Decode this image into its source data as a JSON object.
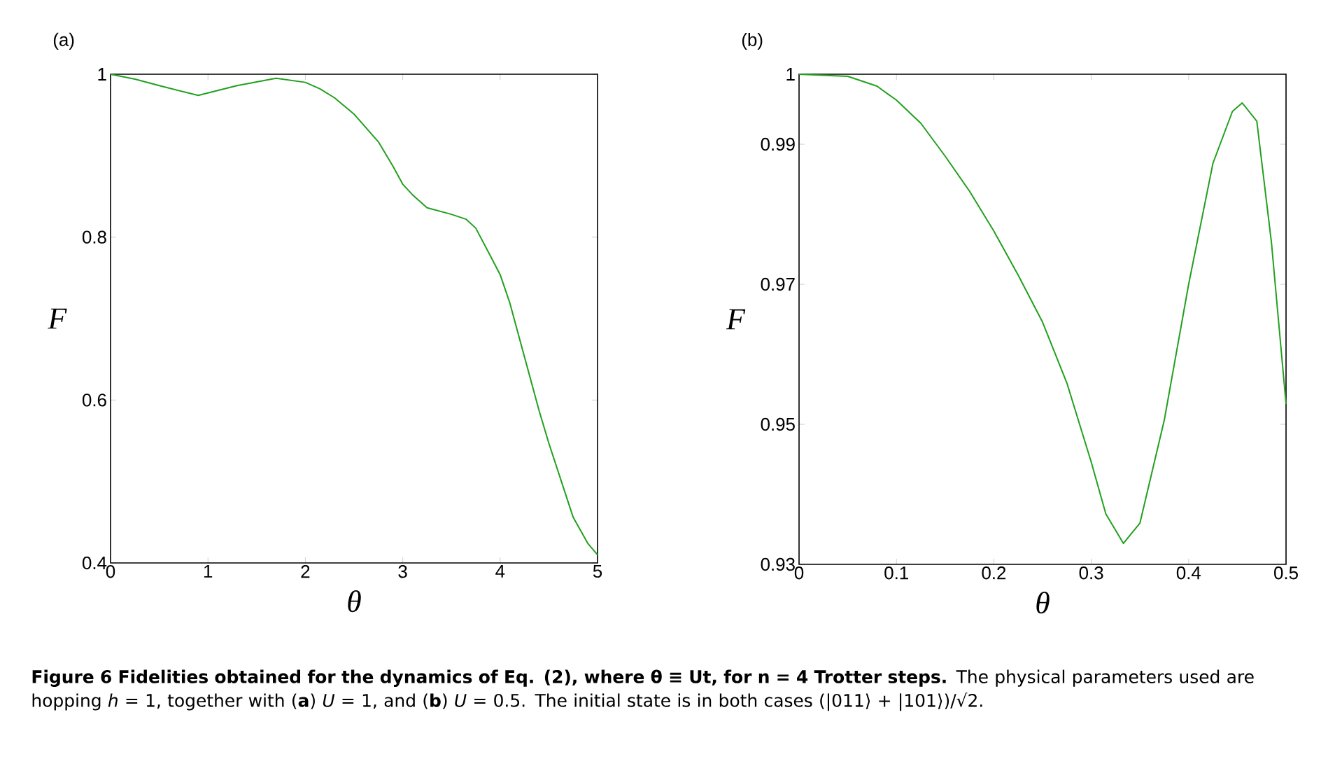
{
  "chart_data": [
    {
      "type": "line",
      "title": "(a)",
      "xlabel": "θ",
      "ylabel": "F",
      "color": "#22a01e",
      "x": [
        0,
        0.25,
        0.5,
        0.9,
        1.1,
        1.3,
        1.7,
        2.0,
        2.15,
        2.3,
        2.5,
        2.75,
        2.9,
        3.0,
        3.1,
        3.25,
        3.5,
        3.65,
        3.75,
        3.9,
        4.0,
        4.1,
        4.25,
        4.4,
        4.5,
        4.75,
        4.9,
        5.0
      ],
      "values": [
        1.0,
        0.994,
        0.986,
        0.974,
        0.98,
        0.986,
        0.995,
        0.99,
        0.982,
        0.971,
        0.951,
        0.917,
        0.887,
        0.865,
        0.852,
        0.836,
        0.828,
        0.822,
        0.811,
        0.777,
        0.754,
        0.719,
        0.653,
        0.587,
        0.547,
        0.456,
        0.424,
        0.41
      ],
      "xlim": [
        0,
        5
      ],
      "ylim": [
        0.4,
        1
      ],
      "xticks": [
        0,
        1,
        2,
        3,
        4,
        5
      ],
      "yticks": [
        0.4,
        0.6,
        0.8,
        1
      ],
      "annotations": [
        "**Figure 6  Fidelities obtained for the dynamics of Eq. (2), where θ ≡ Ut, for n = 4 Trotter steps.** The physical parameters used are hopping *h* = 1, together with (**a**) *U* = 1, and (**b**) *U* = 0.5. The initial state is in both cases (|011⟩ + |101⟩)/√2."
      ]
    },
    {
      "type": "line",
      "title": "(b)",
      "xlabel": "θ",
      "ylabel": "F",
      "color": "#22a01e",
      "x": [
        0,
        0.05,
        0.08,
        0.1,
        0.125,
        0.15,
        0.175,
        0.2,
        0.225,
        0.25,
        0.275,
        0.3,
        0.315,
        0.333,
        0.35,
        0.375,
        0.4,
        0.425,
        0.445,
        0.455,
        0.47,
        0.485,
        0.5
      ],
      "values": [
        1.0,
        0.9997,
        0.9983,
        0.9963,
        0.993,
        0.9883,
        0.9833,
        0.9776,
        0.9713,
        0.9646,
        0.9559,
        0.9446,
        0.9372,
        0.933,
        0.9359,
        0.9506,
        0.97,
        0.9873,
        0.9947,
        0.9959,
        0.9933,
        0.976,
        0.9529
      ],
      "xlim": [
        0,
        0.5
      ],
      "ylim": [
        0.93,
        1
      ],
      "xticks": [
        0,
        0.1,
        0.2,
        0.3,
        0.4,
        0.5
      ],
      "yticks": [
        0.93,
        0.95,
        0.97,
        0.99,
        1
      ]
    }
  ]
}
